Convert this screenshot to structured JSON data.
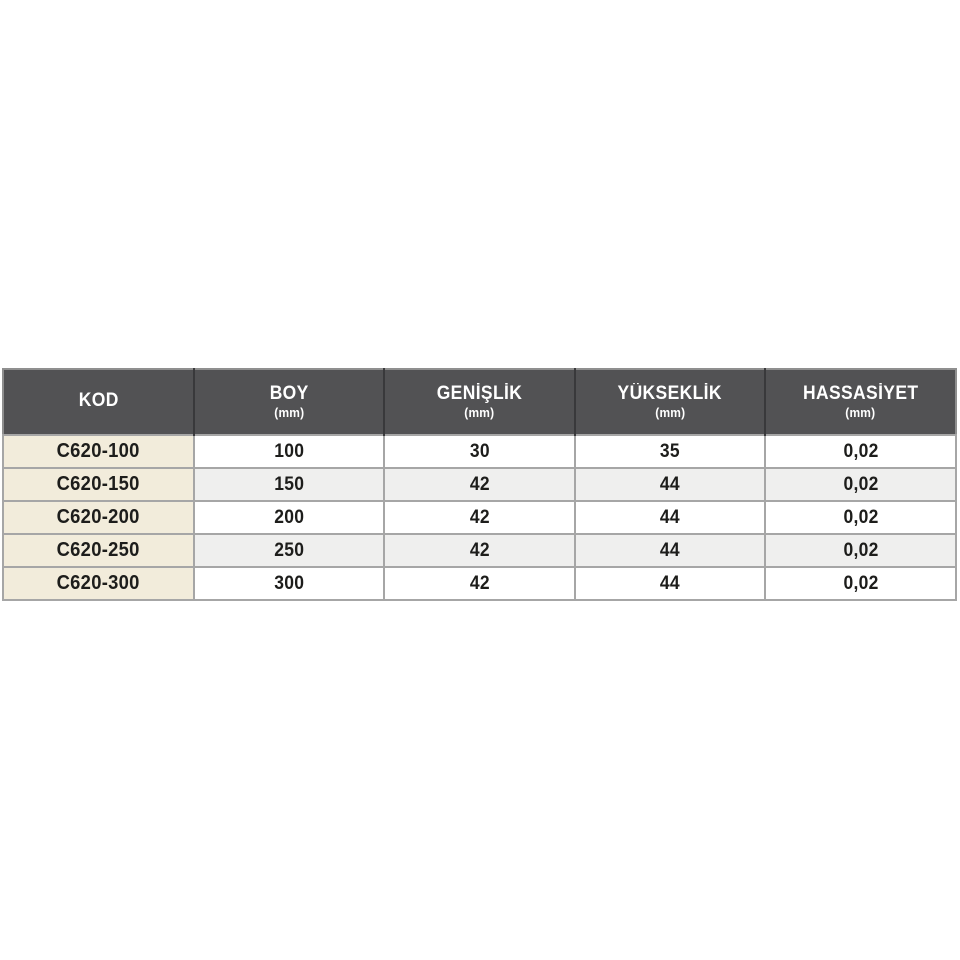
{
  "chart_data": {
    "type": "table",
    "columns": [
      {
        "label": "KOD",
        "unit": ""
      },
      {
        "label": "BOY",
        "unit": "(mm)"
      },
      {
        "label": "GENİŞLİK",
        "unit": "(mm)"
      },
      {
        "label": "YÜKSEKLİK",
        "unit": "(mm)"
      },
      {
        "label": "HASSASİYET",
        "unit": "(mm)"
      }
    ],
    "rows": [
      [
        "C620-100",
        "100",
        "30",
        "35",
        "0,02"
      ],
      [
        "C620-150",
        "150",
        "42",
        "44",
        "0,02"
      ],
      [
        "C620-200",
        "200",
        "42",
        "44",
        "0,02"
      ],
      [
        "C620-250",
        "250",
        "42",
        "44",
        "0,02"
      ],
      [
        "C620-300",
        "300",
        "42",
        "44",
        "0,02"
      ]
    ],
    "layout_hints": {
      "header_rows": 1,
      "kod_column_highlighted": true,
      "row_striping": "odd-white-even-gray"
    },
    "colors": {
      "header_bg": "#525254",
      "header_text": "#ffffff",
      "header_divider": "#39393b",
      "kod_column_bg": "#f2ecdb",
      "row_bg_odd": "#ffffff",
      "row_bg_even": "#efefee",
      "grid_border": "#a6a6a6",
      "outer_border": "#8f8f8f",
      "cell_text": "#1d1d1b"
    }
  }
}
